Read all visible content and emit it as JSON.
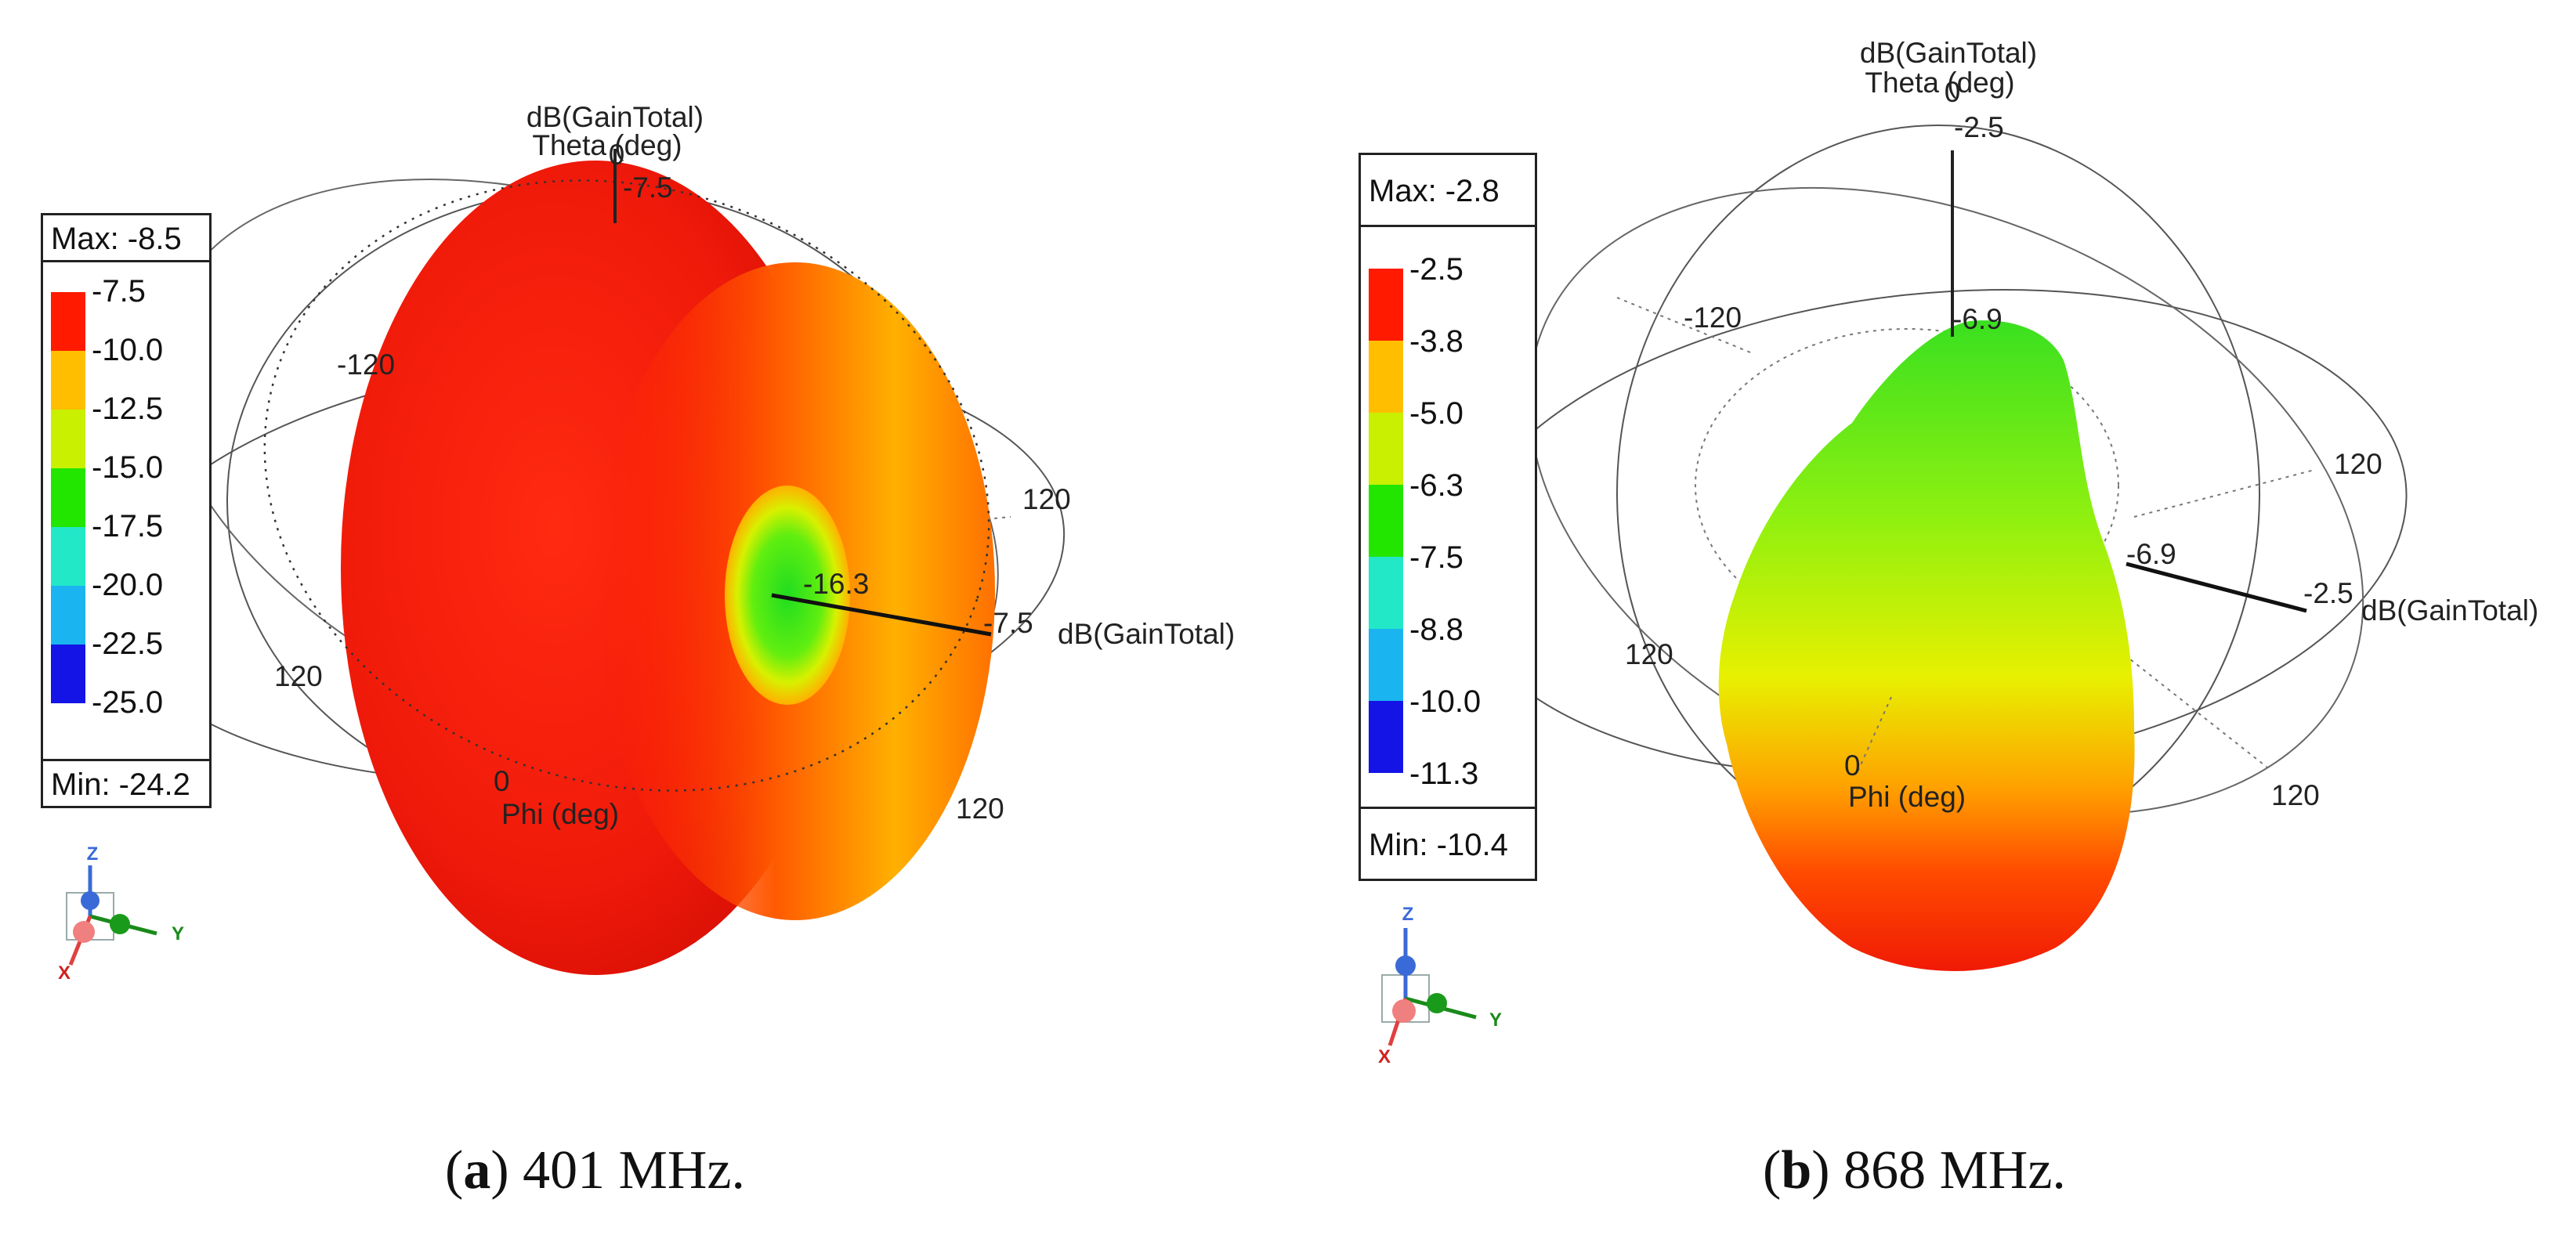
{
  "panels": {
    "a": {
      "legend": {
        "max": "Max: -8.5",
        "min": "Min: -24.2",
        "levels": [
          "-7.5",
          "-10.0",
          "-12.5",
          "-15.0",
          "-17.5",
          "-20.0",
          "-22.5",
          "-25.0"
        ],
        "colors": [
          "#ff1a00",
          "#ffbf00",
          "#c8f000",
          "#22e600",
          "#22e8c8",
          "#1ab4f0",
          "#1414e6"
        ]
      },
      "labels": {
        "axis_name": "dB(GainTotal)",
        "theta_name": "Theta (deg)",
        "theta_zero": "0",
        "top_value": "-7.5",
        "inner_value": "-16.3",
        "side_value": "-7.5",
        "axis_name_side": "dB(GainTotal)",
        "tick_left_top": "-120",
        "tick_right": "120",
        "tick_left_bottom": "120",
        "tick_bottom_right": "120",
        "phi_zero": "0",
        "phi_name": "Phi (deg)"
      },
      "triad": {
        "z": "Z",
        "y": "Y",
        "x": "X"
      },
      "caption": {
        "letter": "a",
        "text": " 401 MHz."
      }
    },
    "b": {
      "legend": {
        "max": "Max: -2.8",
        "min": "Min: -10.4",
        "levels": [
          "-2.5",
          "-3.8",
          "-5.0",
          "-6.3",
          "-7.5",
          "-8.8",
          "-10.0",
          "-11.3"
        ],
        "colors": [
          "#ff1a00",
          "#ffbf00",
          "#c8f000",
          "#22e600",
          "#22e8c8",
          "#1ab4f0",
          "#1414e6"
        ]
      },
      "labels": {
        "axis_name": "dB(GainTotal)",
        "theta_name": "Theta (deg)",
        "theta_zero": "0",
        "top_value": "-2.5",
        "inner_value": "-6.9",
        "side_value": "-2.5",
        "side_inner": "-6.9",
        "axis_name_side": "dB(GainTotal)",
        "tick_left_top": "-120",
        "tick_right": "120",
        "tick_left_bottom": "120",
        "tick_bottom_right": "120",
        "phi_zero": "0",
        "phi_name": "Phi (deg)"
      },
      "triad": {
        "z": "Z",
        "y": "Y",
        "x": "X"
      },
      "caption": {
        "letter": "b",
        "text": " 868 MHz."
      }
    }
  }
}
